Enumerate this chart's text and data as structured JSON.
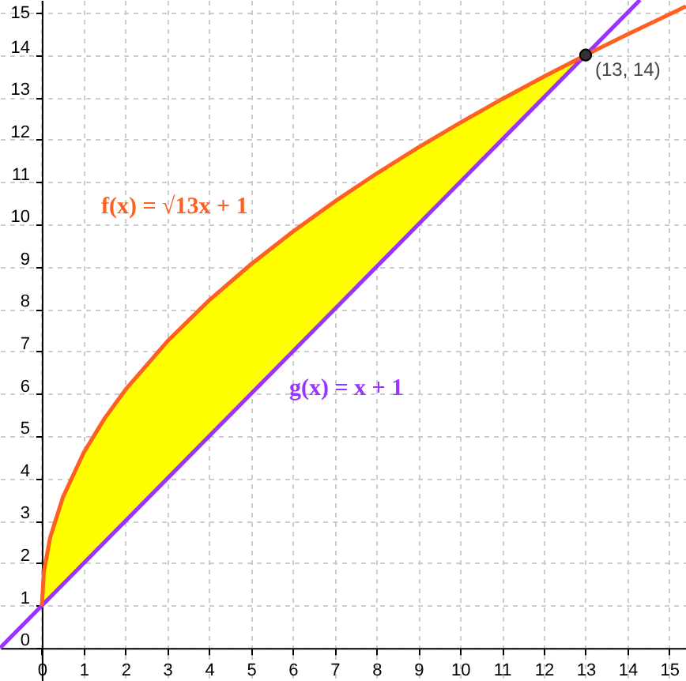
{
  "chart_data": {
    "type": "line",
    "xlim": [
      -1,
      15.4
    ],
    "ylim": [
      -0.78,
      15.3
    ],
    "xticks": [
      0,
      1,
      2,
      3,
      4,
      5,
      6,
      7,
      8,
      9,
      10,
      11,
      12,
      13,
      14,
      15
    ],
    "yticks": [
      0,
      1,
      2,
      3,
      4,
      5,
      6,
      7,
      8,
      9,
      10,
      11,
      12,
      13,
      14,
      15
    ],
    "grid": true,
    "line_style": "solid",
    "series": [
      {
        "type": "area",
        "color": "#ffff00",
        "x": [
          0,
          0.05,
          0.2,
          0.5,
          1,
          1.5,
          2,
          3,
          4,
          5,
          6,
          7,
          8,
          9,
          10,
          11,
          12,
          13
        ],
        "values": [
          1,
          1.81,
          2.61,
          3.55,
          4.61,
          5.42,
          6.1,
          7.24,
          8.21,
          9.06,
          9.83,
          10.54,
          11.2,
          11.82,
          12.4,
          12.96,
          13.49,
          14
        ]
      },
      {
        "name": "g(x) = x + 1",
        "color": "#9933ff",
        "x": [
          -1,
          14.3
        ],
        "values": [
          0,
          15.3
        ]
      },
      {
        "name": "f(x) = √13x + 1",
        "color": "#ff6020",
        "x": [
          0,
          0.05,
          0.2,
          0.5,
          1,
          1.5,
          2,
          3,
          4,
          5,
          6,
          7,
          8,
          9,
          10,
          11,
          12,
          13,
          14,
          15,
          15.4
        ],
        "values": [
          1,
          1.81,
          2.61,
          3.55,
          4.61,
          5.42,
          6.1,
          7.24,
          8.21,
          9.06,
          9.83,
          10.54,
          11.2,
          11.82,
          12.4,
          12.96,
          13.49,
          14,
          14.49,
          14.96,
          15.15
        ]
      },
      {
        "type": "scatter",
        "color": "#333333",
        "marker": "circle",
        "x": [
          13
        ],
        "values": [
          14
        ]
      }
    ],
    "annotations": [
      {
        "text": "(13, 14)",
        "x": 13,
        "y": 14
      }
    ]
  }
}
